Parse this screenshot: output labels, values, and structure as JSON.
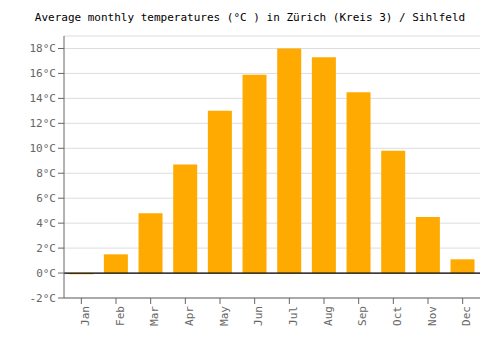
{
  "chart_data": {
    "type": "bar",
    "title": "Average monthly temperatures (°C ) in Zürich (Kreis 3) / Sihlfeld",
    "categories": [
      "Jan",
      "Feb",
      "Mar",
      "Apr",
      "May",
      "Jun",
      "Jul",
      "Aug",
      "Sep",
      "Oct",
      "Nov",
      "Dec"
    ],
    "values": [
      -0.1,
      1.5,
      4.8,
      8.7,
      13.0,
      15.9,
      18.0,
      17.3,
      14.5,
      9.8,
      4.5,
      1.1
    ],
    "color": "#FFAA00",
    "ylim": [
      -2,
      19
    ],
    "yticks": [
      {
        "value": -2,
        "label": "-2°C"
      },
      {
        "value": 0,
        "label": "0°C"
      },
      {
        "value": 2,
        "label": "2°C"
      },
      {
        "value": 4,
        "label": "4°C"
      },
      {
        "value": 6,
        "label": "6°C"
      },
      {
        "value": 8,
        "label": "8°C"
      },
      {
        "value": 10,
        "label": "10°C"
      },
      {
        "value": 12,
        "label": "12°C"
      },
      {
        "value": 14,
        "label": "14°C"
      },
      {
        "value": 16,
        "label": "16°C"
      },
      {
        "value": 18,
        "label": "18°C"
      }
    ],
    "grid": true
  }
}
